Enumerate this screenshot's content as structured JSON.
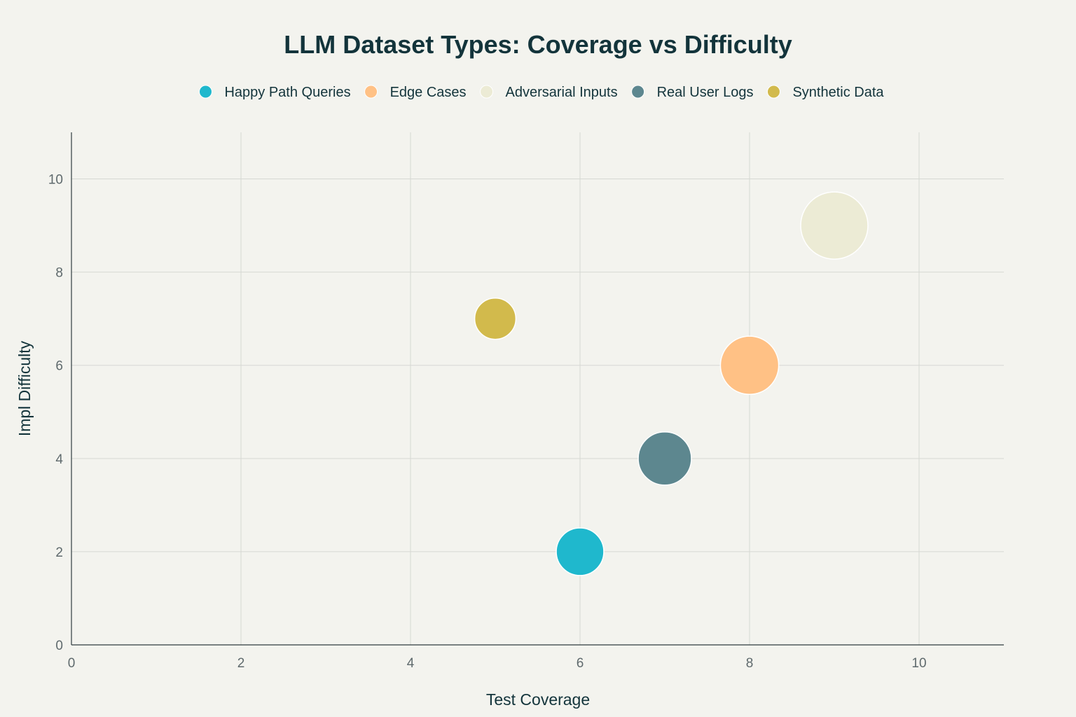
{
  "chart_data": {
    "type": "scatter",
    "title": "LLM Dataset Types: Coverage vs Difficulty",
    "xlabel": "Test Coverage",
    "ylabel": "Impl Difficulty",
    "xlim": [
      0,
      11
    ],
    "ylim": [
      0,
      11
    ],
    "xticks": [
      0,
      2,
      4,
      6,
      8,
      10
    ],
    "yticks": [
      0,
      2,
      4,
      6,
      8,
      10
    ],
    "grid": true,
    "legend_position": "top",
    "series": [
      {
        "name": "Happy Path Queries",
        "color": "#1fb8cd",
        "x": 6,
        "y": 2,
        "size": 2
      },
      {
        "name": "Edge Cases",
        "color": "#ffc185",
        "x": 8,
        "y": 6,
        "size": 3
      },
      {
        "name": "Adversarial Inputs",
        "color": "#ecebd5",
        "x": 9,
        "y": 9,
        "size": 4
      },
      {
        "name": "Real User Logs",
        "color": "#5d878f",
        "x": 7,
        "y": 4,
        "size": 2.5
      },
      {
        "name": "Synthetic Data",
        "color": "#d2ba4c",
        "x": 5,
        "y": 7,
        "size": 1.5
      }
    ]
  }
}
